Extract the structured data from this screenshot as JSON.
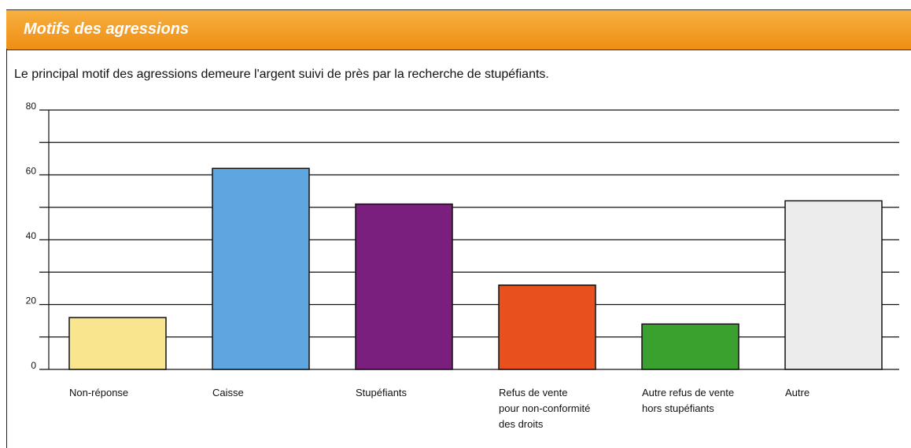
{
  "header": {
    "title": "Motifs des agressions"
  },
  "chart_data": {
    "type": "bar",
    "title": "Le principal motif des agressions demeure l'argent suivi de près par la recherche de stupéfiants.",
    "categories": [
      "Non-réponse",
      "Caisse",
      "Stupéfiants",
      "Refus de vente\npour non-conformité\ndes droits",
      "Autre refus de vente\nhors stupéfiants",
      "Autre"
    ],
    "values": [
      16,
      62,
      51,
      26,
      14,
      52
    ],
    "colors": [
      "#f9e58e",
      "#5ea6e0",
      "#7b1f7e",
      "#e8501e",
      "#3aa02e",
      "#ececec"
    ],
    "ylim": [
      0,
      80
    ],
    "yticks": [
      0,
      20,
      40,
      60,
      80
    ],
    "minor_yticks": [
      10,
      30,
      50,
      70
    ],
    "grid": true
  }
}
